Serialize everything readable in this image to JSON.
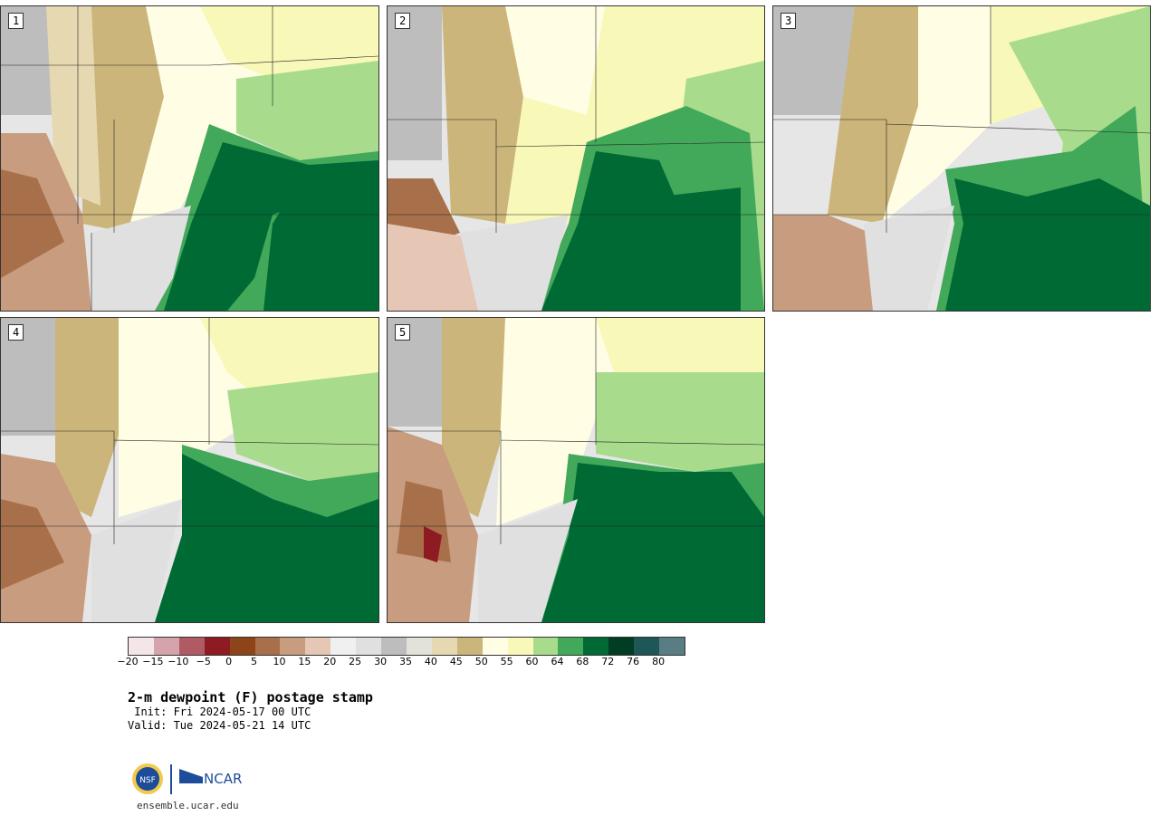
{
  "panels": [
    {
      "label": "1"
    },
    {
      "label": "2"
    },
    {
      "label": "3"
    },
    {
      "label": "4"
    },
    {
      "label": "5"
    }
  ],
  "colorbar": {
    "colors": [
      "#f4e6e8",
      "#d5a3aa",
      "#b05a63",
      "#8e1a22",
      "#8c4418",
      "#a8704a",
      "#c89c7e",
      "#e6c7b6",
      "#f0f0f0",
      "#e0e0e0",
      "#bdbdbd",
      "#e3e2d8",
      "#e6d8b0",
      "#cbb57a",
      "#fffde4",
      "#f8f8b8",
      "#a8dc8c",
      "#42a85a",
      "#006a35",
      "#003d22",
      "#1e5757",
      "#587d82"
    ],
    "tick_labels": [
      "−20",
      "−15",
      "−10",
      "−5",
      "0",
      "5",
      "10",
      "15",
      "20",
      "25",
      "30",
      "35",
      "40",
      "45",
      "50",
      "55",
      "60",
      "64",
      "68",
      "72",
      "76",
      "80"
    ]
  },
  "title": {
    "main": "2-m dewpoint (F) postage stamp",
    "init": " Init: Fri 2024-05-17 00 UTC",
    "valid": "Valid: Tue 2024-05-21 14 UTC"
  },
  "logos": {
    "nsf": "NSF",
    "ncar": "NCAR"
  },
  "site": "ensemble.ucar.edu",
  "icons": {
    "nsf_logo": "nsf-logo-icon",
    "ncar_logo": "ncar-logo-icon"
  }
}
